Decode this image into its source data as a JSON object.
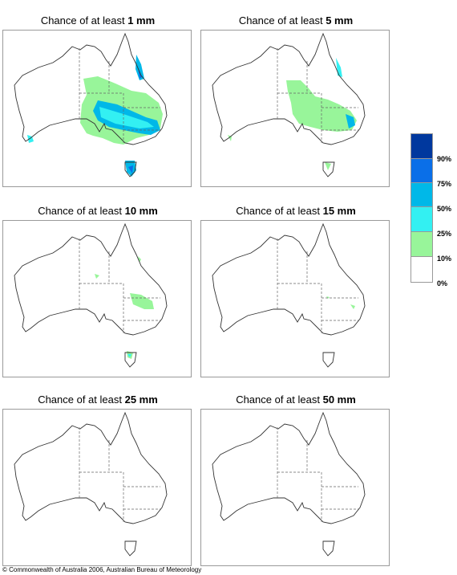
{
  "panels": [
    {
      "prefix": "Chance of at least ",
      "amount": "1 mm"
    },
    {
      "prefix": "Chance of at least ",
      "amount": "5 mm"
    },
    {
      "prefix": "Chance of at least ",
      "amount": "10 mm"
    },
    {
      "prefix": "Chance of at least ",
      "amount": "15 mm"
    },
    {
      "prefix": "Chance of at least ",
      "amount": "25 mm"
    },
    {
      "prefix": "Chance of at least ",
      "amount": "50 mm"
    }
  ],
  "legend": {
    "labels": [
      "90%",
      "75%",
      "50%",
      "25%",
      "10%",
      "0%"
    ],
    "colors": {
      "90-100": "#00389e",
      "75-90": "#0a6fe8",
      "50-75": "#00b8e8",
      "25-50": "#33f0f2",
      "10-25": "#98f59a",
      "0-10": "#ffffff"
    }
  },
  "copyright": "© Commonwealth of Australia 2006, Australian Bureau of Meteorology"
}
